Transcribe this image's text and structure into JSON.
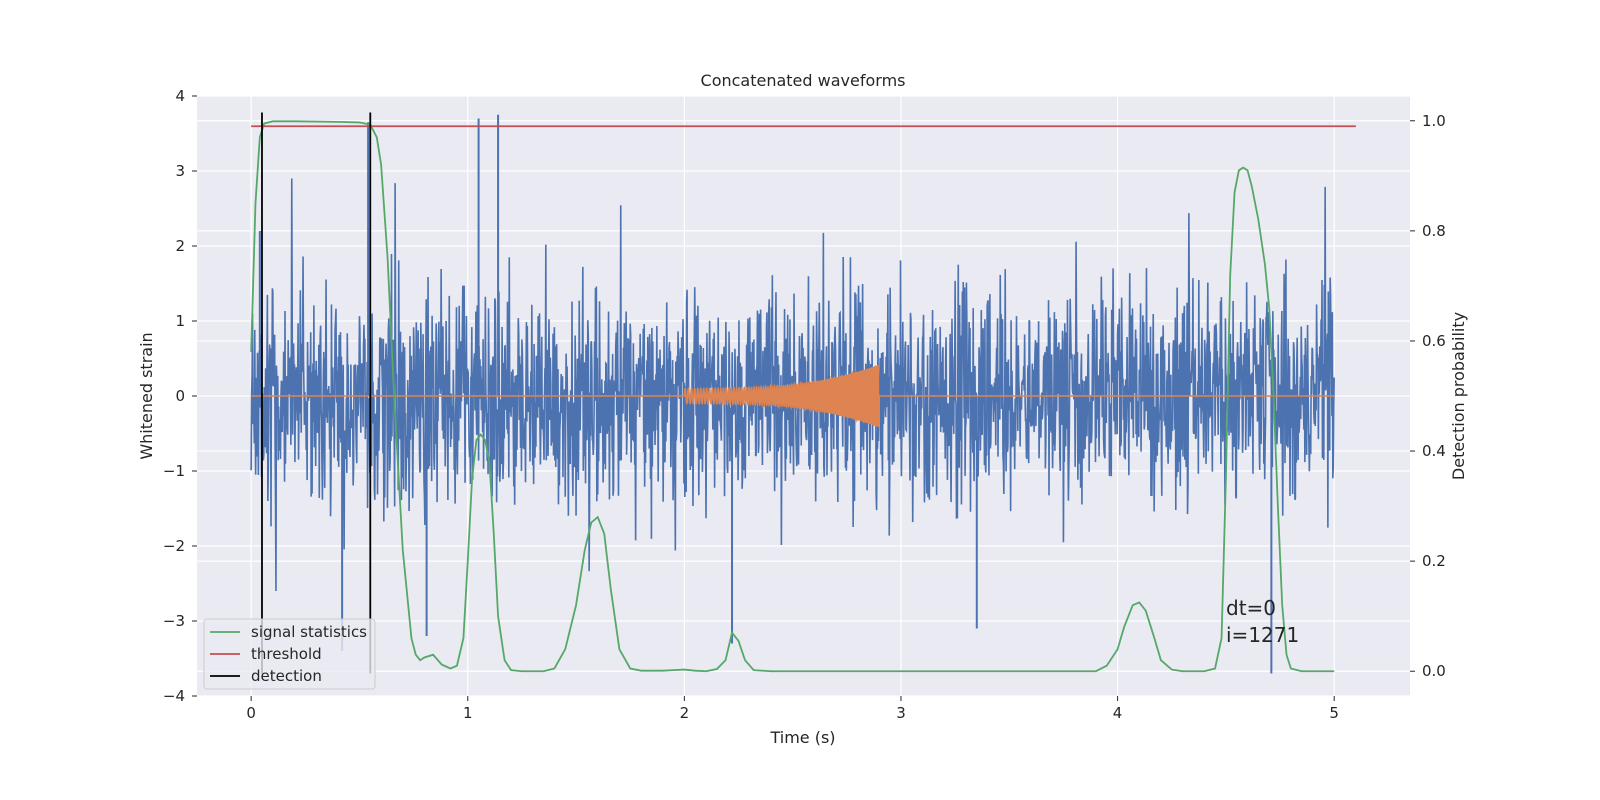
{
  "chart_data": {
    "type": "line",
    "title": "Concatenated waveforms",
    "xlabel": "Time (s)",
    "ylabel": "Whitened strain",
    "y2label": "Detection probability",
    "xlim": [
      -0.25,
      5.35
    ],
    "ylim": [
      -4.0,
      4.0
    ],
    "y2lim": [
      -0.045,
      1.045
    ],
    "xticks": [
      "0",
      "1",
      "2",
      "3",
      "4",
      "5"
    ],
    "yticks": [
      "4",
      "3",
      "2",
      "1",
      "0",
      "−1",
      "−2",
      "−3",
      "−4"
    ],
    "y2ticks": [
      "1.0",
      "0.8",
      "0.6",
      "0.4",
      "0.2",
      "0.0"
    ],
    "grid": true,
    "legend_position": "bottom-left",
    "annotations": [
      "dt=0",
      "i=1271"
    ],
    "series": [
      {
        "name": "",
        "axis": "left",
        "kind": "noise",
        "color": "#4c72b0",
        "x_range": [
          0,
          5
        ],
        "peaks": [
          {
            "x": 0.54,
            "y": 3.65
          },
          {
            "x": 1.05,
            "y": 3.7
          },
          {
            "x": 1.14,
            "y": 3.75
          },
          {
            "x": 4.71,
            "y": -3.7
          },
          {
            "x": 2.22,
            "y": -3.3
          },
          {
            "x": 0.42,
            "y": -3.4
          },
          {
            "x": 0.04,
            "y": 2.2
          },
          {
            "x": 0.81,
            "y": -3.2
          },
          {
            "x": 3.35,
            "y": -3.1
          }
        ]
      },
      {
        "name": "",
        "axis": "left",
        "kind": "chirp",
        "color": "#dd8452",
        "x_range": [
          0,
          5
        ],
        "chirp_start": 2.0,
        "chirp_end": 2.9,
        "chirp_amplitude_start": 0.1,
        "chirp_amplitude_end": 0.42
      },
      {
        "name": "signal statistics",
        "axis": "right",
        "color": "#55a868",
        "x": [
          0,
          0.02,
          0.04,
          0.06,
          0.1,
          0.2,
          0.4,
          0.5,
          0.55,
          0.58,
          0.6,
          0.63,
          0.66,
          0.7,
          0.74,
          0.76,
          0.78,
          0.8,
          0.84,
          0.88,
          0.92,
          0.95,
          0.98,
          1.0,
          1.02,
          1.04,
          1.06,
          1.08,
          1.1,
          1.12,
          1.14,
          1.17,
          1.2,
          1.25,
          1.3,
          1.35,
          1.4,
          1.45,
          1.5,
          1.54,
          1.57,
          1.6,
          1.63,
          1.66,
          1.7,
          1.75,
          1.8,
          1.9,
          1.95,
          2.0,
          2.05,
          2.1,
          2.15,
          2.19,
          2.22,
          2.25,
          2.28,
          2.32,
          2.4,
          3.0,
          3.5,
          3.9,
          3.95,
          4.0,
          4.03,
          4.07,
          4.1,
          4.13,
          4.17,
          4.2,
          4.25,
          4.3,
          4.4,
          4.45,
          4.48,
          4.5,
          4.52,
          4.54,
          4.56,
          4.58,
          4.6,
          4.62,
          4.65,
          4.68,
          4.7,
          4.72,
          4.74,
          4.76,
          4.78,
          4.8,
          4.85,
          4.9,
          5.0
        ],
        "y": [
          0.58,
          0.85,
          0.97,
          0.995,
          0.999,
          0.999,
          0.998,
          0.997,
          0.993,
          0.97,
          0.92,
          0.75,
          0.5,
          0.22,
          0.06,
          0.03,
          0.02,
          0.025,
          0.03,
          0.012,
          0.005,
          0.01,
          0.06,
          0.2,
          0.35,
          0.42,
          0.43,
          0.42,
          0.38,
          0.25,
          0.1,
          0.02,
          0.002,
          0.0,
          0.0,
          0.0,
          0.005,
          0.04,
          0.12,
          0.22,
          0.27,
          0.28,
          0.25,
          0.15,
          0.04,
          0.005,
          0.001,
          0.001,
          0.002,
          0.003,
          0.001,
          0.0,
          0.004,
          0.02,
          0.07,
          0.055,
          0.02,
          0.002,
          0.0,
          0.0,
          0.0,
          0.0,
          0.01,
          0.04,
          0.08,
          0.12,
          0.125,
          0.11,
          0.06,
          0.02,
          0.003,
          0.0,
          0.0,
          0.005,
          0.06,
          0.35,
          0.72,
          0.87,
          0.91,
          0.915,
          0.91,
          0.88,
          0.82,
          0.74,
          0.66,
          0.5,
          0.3,
          0.12,
          0.03,
          0.005,
          0.0,
          0.0,
          0.0
        ]
      },
      {
        "name": "threshold",
        "axis": "right",
        "color": "#c44e52",
        "x": [
          0,
          5.1
        ],
        "y": [
          0.99,
          0.99
        ]
      },
      {
        "name": "detection",
        "axis": "left",
        "color": "#000000",
        "kind": "vlines",
        "x": [
          0.05,
          0.55
        ],
        "y_range": [
          -3.7,
          3.78
        ]
      }
    ]
  }
}
